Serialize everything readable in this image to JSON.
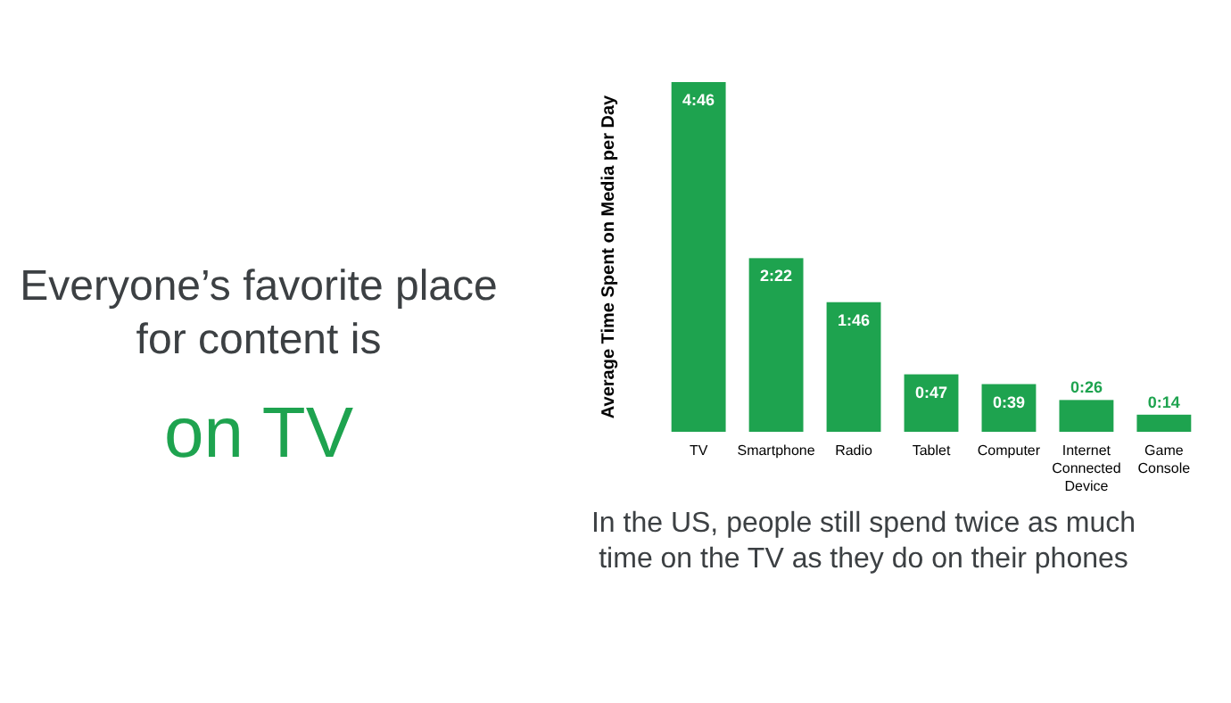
{
  "chart_data": {
    "type": "bar",
    "title": "Everyone’s favorite place for content is",
    "subtitle": "on TV",
    "ylabel": "Average Time Spent on Media per Day",
    "categories": [
      "TV",
      "Smartphone",
      "Radio",
      "Tablet",
      "Computer",
      "Internet Connected Device",
      "Game Console"
    ],
    "values": [
      286,
      142,
      106,
      47,
      39,
      26,
      14
    ],
    "value_labels": [
      "4:46",
      "2:22",
      "1:46",
      "0:47",
      "0:39",
      "0:26",
      "0:14"
    ],
    "color": "#1ea34f",
    "annotations": [
      "In the US, people still spend twice as much time on the TV as they do on their phones"
    ]
  }
}
